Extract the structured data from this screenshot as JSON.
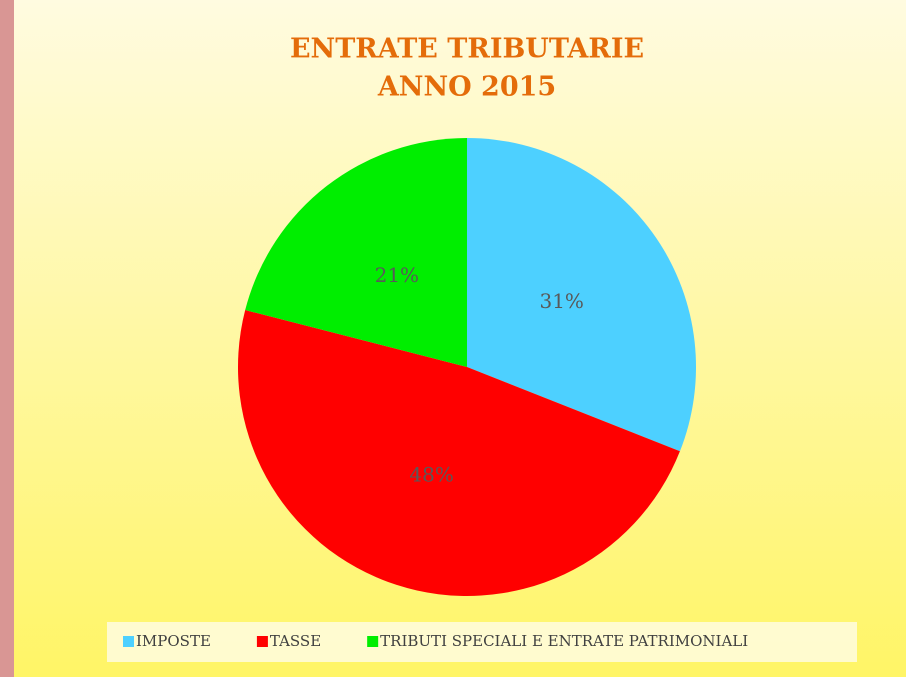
{
  "chart_data": {
    "type": "pie",
    "title": [
      "ENTRATE TRIBUTARIE",
      "ANNO 2015"
    ],
    "categories": [
      "IMPOSTE",
      "TASSE",
      "TRIBUTI SPECIALI E ENTRATE PATRIMONIALI"
    ],
    "values": [
      31,
      48,
      21
    ],
    "value_labels": [
      "31%",
      "48%",
      "21%"
    ],
    "colors": [
      "#4dd0ff",
      "#ff0000",
      "#00ee00"
    ],
    "legend": "bottom"
  }
}
